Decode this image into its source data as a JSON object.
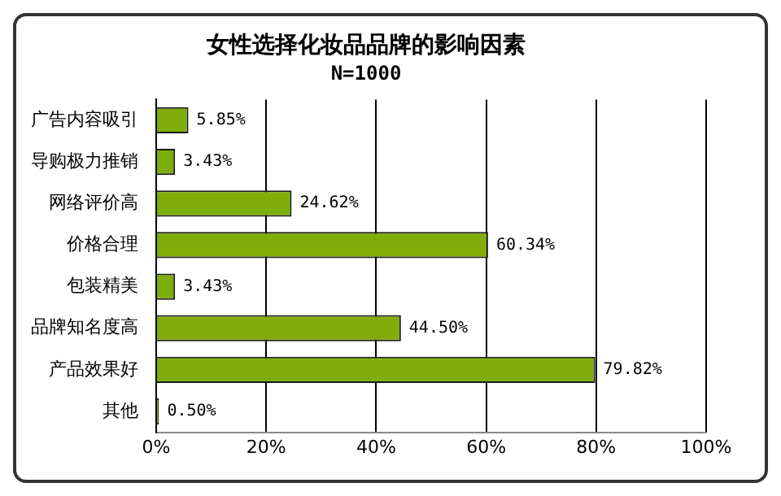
{
  "chart_data": {
    "type": "bar",
    "orientation": "horizontal",
    "title": "女性选择化妆品品牌的影响因素",
    "subtitle": "N=1000",
    "categories": [
      "广告内容吸引",
      "导购极力推销",
      "网络评价高",
      "价格合理",
      "包装精美",
      "品牌知名度高",
      "产品效果好",
      "其他"
    ],
    "values": [
      5.85,
      3.43,
      24.62,
      60.34,
      3.43,
      44.5,
      79.82,
      0.5
    ],
    "value_labels": [
      "5.85%",
      "3.43%",
      "24.62%",
      "60.34%",
      "3.43%",
      "44.50%",
      "79.82%",
      "0.50%"
    ],
    "color": "#7fae0a",
    "xlim": [
      0,
      100
    ],
    "xticks": [
      {
        "value": 0,
        "label": "0%"
      },
      {
        "value": 20,
        "label": "20%"
      },
      {
        "value": 40,
        "label": "40%"
      },
      {
        "value": 60,
        "label": "60%"
      },
      {
        "value": 80,
        "label": "80%"
      },
      {
        "value": 100,
        "label": "100%"
      }
    ],
    "grid": "x",
    "legend": false
  }
}
